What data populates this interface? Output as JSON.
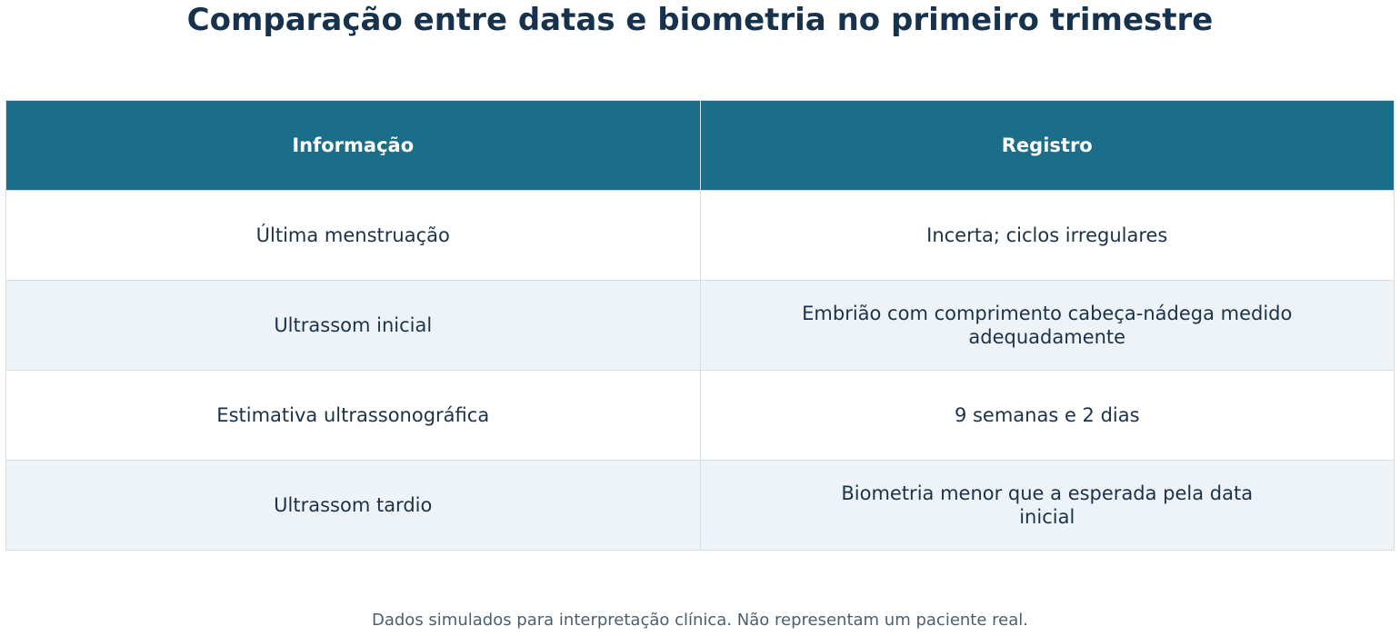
{
  "title": "Comparação entre datas e biometria no primeiro trimestre",
  "table": {
    "header": [
      "Informação",
      "Registro"
    ],
    "rows": [
      [
        "Última menstruação",
        "Incerta; ciclos irregulares"
      ],
      [
        "Ultrassom inicial",
        "Embrião com comprimento cabeça-nádega medido\nadequadamente"
      ],
      [
        "Estimativa ultrassonográfica",
        "9 semanas e 2 dias"
      ],
      [
        "Ultrassom tardio",
        "Biometria menor que a esperada pela data\ninicial"
      ]
    ]
  },
  "footnote": "Dados simulados para interpretação clínica. Não representam um paciente real."
}
